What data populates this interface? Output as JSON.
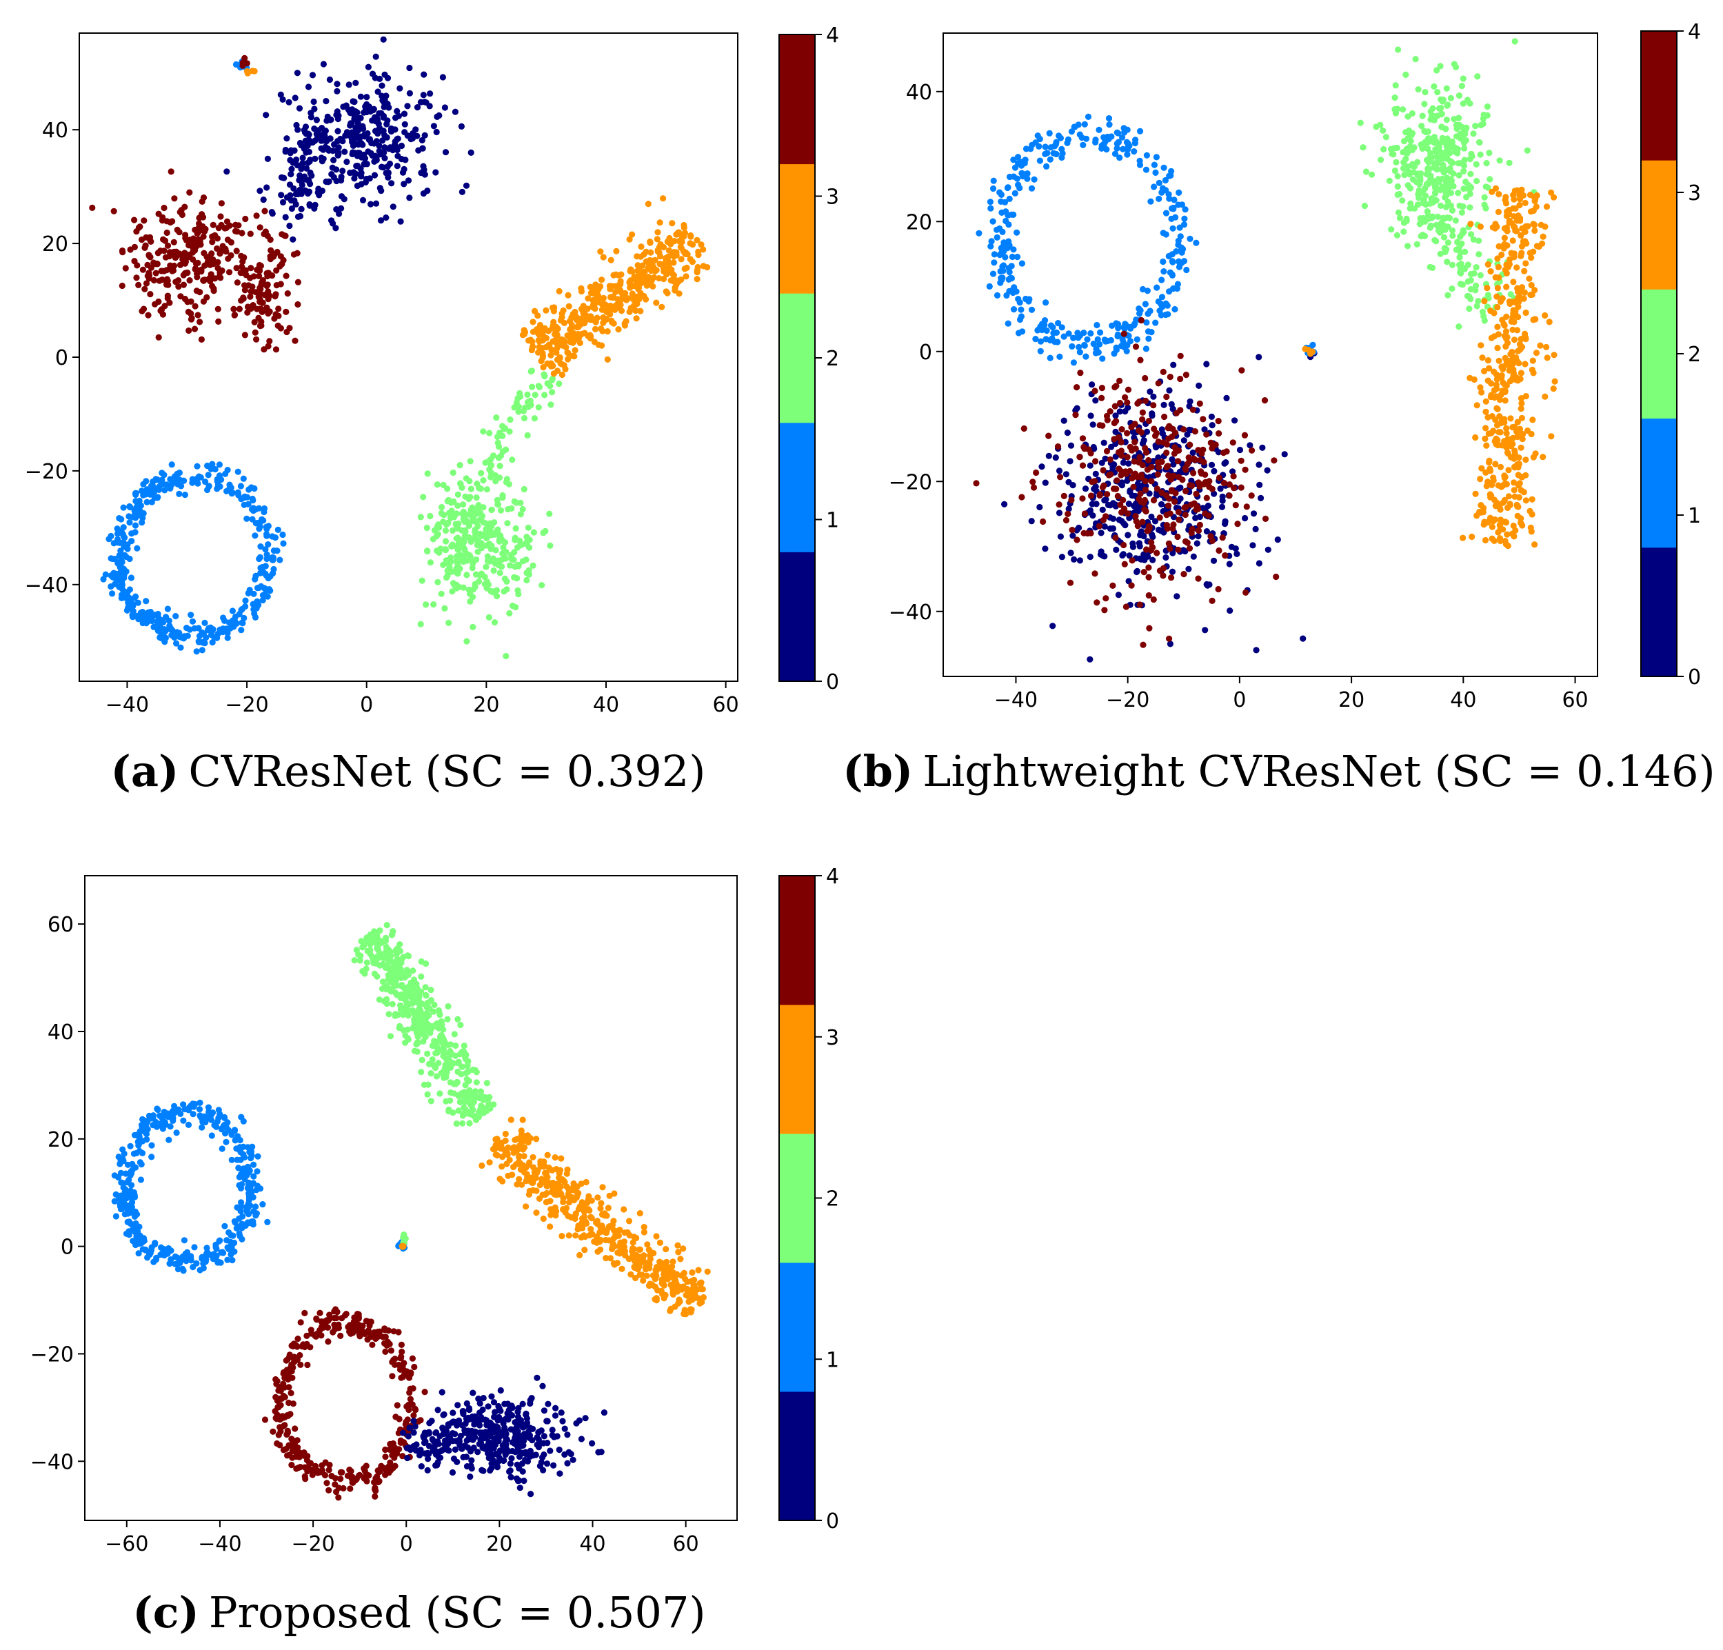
{
  "palette": {
    "0": "#00007f",
    "1": "#0080ff",
    "2": "#7dff7a",
    "3": "#ff9400",
    "4": "#7f0000"
  },
  "chart_data": [
    {
      "id": "a",
      "type": "scatter",
      "caption_letter": "(a)",
      "caption_text": "CVResNet (SC = 0.392)",
      "xlim": [
        -48,
        62
      ],
      "ylim": [
        -57,
        57
      ],
      "xticks": [
        -40,
        -20,
        0,
        20,
        40,
        60
      ],
      "yticks": [
        -40,
        -20,
        0,
        20,
        40
      ],
      "colorbar": {
        "ticks": [
          0,
          1,
          2,
          3,
          4
        ]
      },
      "clusters": [
        {
          "class": 0,
          "shape": "blob",
          "cx": 0,
          "cy": 38,
          "rx": 12,
          "ry": 10,
          "n": 360
        },
        {
          "class": 0,
          "shape": "blob",
          "cx": -12,
          "cy": 30,
          "rx": 5,
          "ry": 8,
          "n": 60
        },
        {
          "class": 4,
          "shape": "blob",
          "cx": -30,
          "cy": 17,
          "rx": 10,
          "ry": 9,
          "n": 260
        },
        {
          "class": 4,
          "shape": "blob",
          "cx": -17,
          "cy": 13,
          "rx": 5,
          "ry": 9,
          "n": 110
        },
        {
          "class": 1,
          "shape": "ring",
          "cx": -29,
          "cy": -35,
          "rx": 12.5,
          "ry": 14,
          "n": 420
        },
        {
          "class": 2,
          "shape": "blob",
          "cx": 19,
          "cy": -32,
          "rx": 9,
          "ry": 11,
          "n": 330
        },
        {
          "class": 2,
          "shape": "segment",
          "x1": 20,
          "y1": -20,
          "x2": 30,
          "y2": -3,
          "w": 3,
          "n": 60
        },
        {
          "class": 3,
          "shape": "segment",
          "x1": 28,
          "y1": 0,
          "x2": 55,
          "y2": 21,
          "w": 5,
          "n": 430
        },
        {
          "class": 1,
          "shape": "blob",
          "cx": -21,
          "cy": 51.5,
          "rx": 1,
          "ry": 1,
          "n": 10
        },
        {
          "class": 4,
          "shape": "blob",
          "cx": -20.5,
          "cy": 51.5,
          "rx": 0.8,
          "ry": 0.8,
          "n": 5
        },
        {
          "class": 3,
          "shape": "blob",
          "cx": -19.5,
          "cy": 50.5,
          "rx": 0.8,
          "ry": 0.8,
          "n": 4
        }
      ]
    },
    {
      "id": "b",
      "type": "scatter",
      "caption_letter": "(b)",
      "caption_text": "Lightweight CVResNet (SC = 0.146)",
      "xlim": [
        -53,
        64
      ],
      "ylim": [
        -50,
        49
      ],
      "xticks": [
        -40,
        -20,
        0,
        20,
        40,
        60
      ],
      "yticks": [
        -40,
        -20,
        0,
        20,
        40
      ],
      "colorbar": {
        "ticks": [
          0,
          1,
          2,
          3,
          4
        ]
      },
      "clusters": [
        {
          "class": 1,
          "shape": "ring",
          "cx": -27,
          "cy": 17,
          "rx": 16,
          "ry": 16,
          "n": 360
        },
        {
          "class": 0,
          "shape": "blob",
          "cx": -16,
          "cy": -22,
          "rx": 16,
          "ry": 15,
          "n": 430
        },
        {
          "class": 4,
          "shape": "blob",
          "cx": -16,
          "cy": -20,
          "rx": 16,
          "ry": 15,
          "n": 330
        },
        {
          "class": 2,
          "shape": "blob",
          "cx": 35,
          "cy": 30,
          "rx": 9,
          "ry": 11,
          "n": 360
        },
        {
          "class": 2,
          "shape": "segment",
          "x1": 35,
          "y1": 20,
          "x2": 45,
          "y2": 5,
          "w": 5,
          "n": 80
        },
        {
          "class": 3,
          "shape": "segment",
          "x1": 50,
          "y1": 25,
          "x2": 47,
          "y2": -30,
          "w": 5,
          "n": 440
        },
        {
          "class": 0,
          "shape": "blob",
          "cx": 12.5,
          "cy": 0,
          "rx": 0.8,
          "ry": 0.8,
          "n": 6
        },
        {
          "class": 1,
          "shape": "blob",
          "cx": 12.5,
          "cy": 0.5,
          "rx": 0.8,
          "ry": 0.8,
          "n": 8
        },
        {
          "class": 3,
          "shape": "blob",
          "cx": 12.5,
          "cy": -0.3,
          "rx": 0.6,
          "ry": 0.6,
          "n": 4
        }
      ]
    },
    {
      "id": "c",
      "type": "scatter",
      "caption_letter": "(c)",
      "caption_text": "Proposed (SC = 0.507)",
      "xlim": [
        -69,
        71
      ],
      "ylim": [
        -51,
        69
      ],
      "xticks": [
        -60,
        -40,
        -20,
        0,
        20,
        40,
        60
      ],
      "yticks": [
        -40,
        -20,
        0,
        20,
        40,
        60
      ],
      "colorbar": {
        "ticks": [
          0,
          1,
          2,
          3,
          4
        ]
      },
      "clusters": [
        {
          "class": 1,
          "shape": "ring",
          "cx": -47,
          "cy": 11,
          "rx": 13.5,
          "ry": 14,
          "n": 400
        },
        {
          "class": 2,
          "shape": "segment",
          "x1": -8,
          "y1": 58,
          "x2": 16,
          "y2": 24,
          "w": 4.5,
          "n": 480
        },
        {
          "class": 3,
          "shape": "segment",
          "x1": 19,
          "y1": 20,
          "x2": 63,
          "y2": -11,
          "w": 4.5,
          "n": 470
        },
        {
          "class": 4,
          "shape": "ring",
          "cx": -13,
          "cy": -29,
          "rx": 14,
          "ry": 15,
          "n": 380
        },
        {
          "class": 0,
          "shape": "blob",
          "cx": 19,
          "cy": -35,
          "rx": 13,
          "ry": 7,
          "n": 360
        },
        {
          "class": 0,
          "shape": "blob",
          "cx": 5,
          "cy": -37,
          "rx": 5,
          "ry": 4,
          "n": 50
        },
        {
          "class": 1,
          "shape": "blob",
          "cx": -1,
          "cy": 0.5,
          "rx": 0.8,
          "ry": 0.8,
          "n": 8
        },
        {
          "class": 2,
          "shape": "blob",
          "cx": -1,
          "cy": 1,
          "rx": 0.8,
          "ry": 0.8,
          "n": 5
        },
        {
          "class": 3,
          "shape": "blob",
          "cx": -0.5,
          "cy": 0,
          "rx": 0.6,
          "ry": 0.6,
          "n": 4
        }
      ]
    }
  ]
}
